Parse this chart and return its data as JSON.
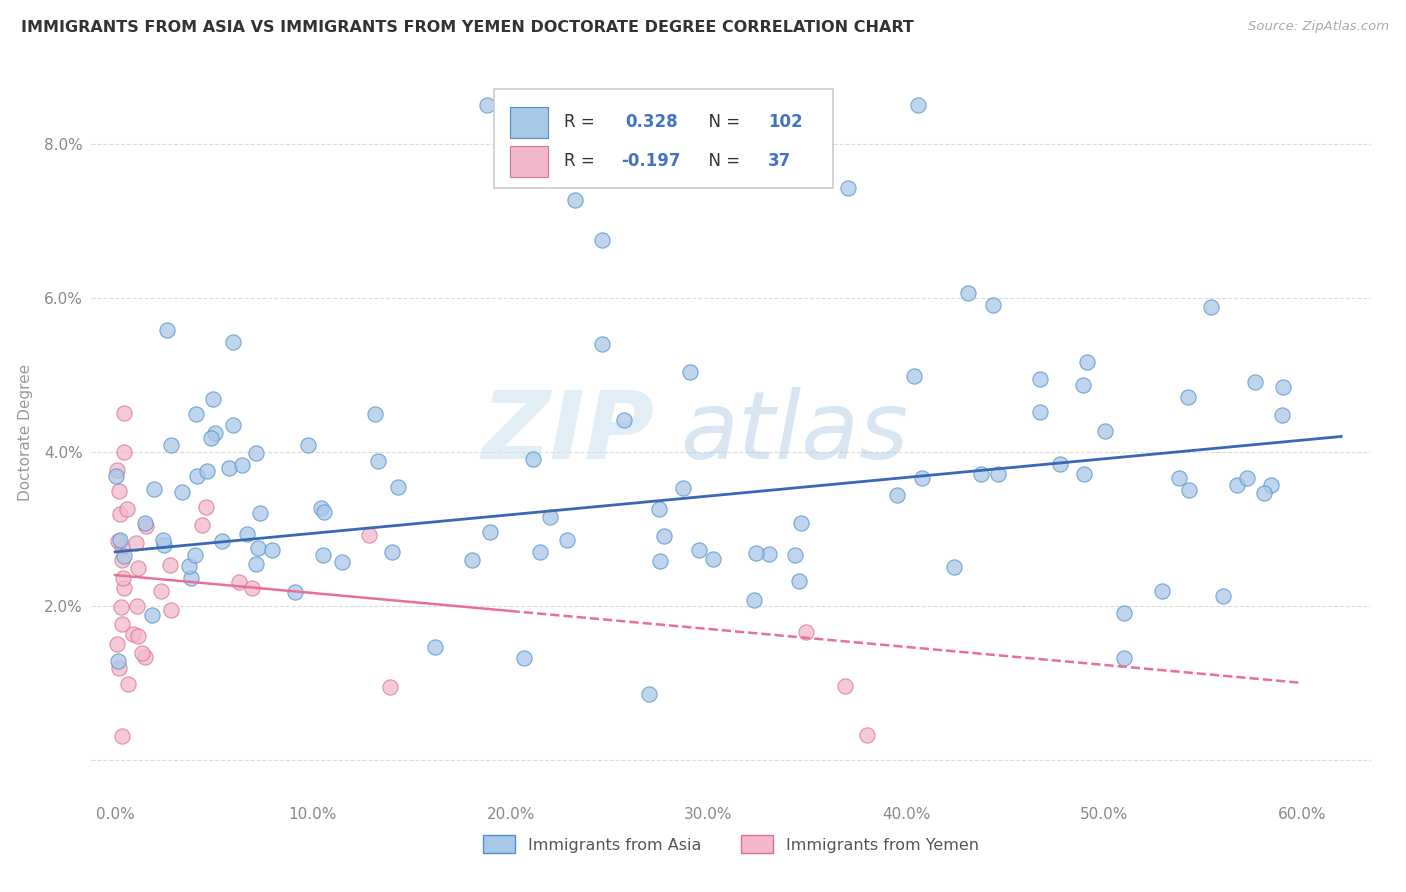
{
  "title": "IMMIGRANTS FROM ASIA VS IMMIGRANTS FROM YEMEN DOCTORATE DEGREE CORRELATION CHART",
  "source": "Source: ZipAtlas.com",
  "ylabel": "Doctorate Degree",
  "xlabel_asia": "Immigrants from Asia",
  "xlabel_yemen": "Immigrants from Yemen",
  "watermark_zip": "ZIP",
  "watermark_atlas": "atlas",
  "asia_color": "#a8c8e8",
  "yemen_color": "#f4b8cc",
  "asia_line_color": "#3a68b4",
  "yemen_line_color": "#e87090",
  "r_asia": "0.328",
  "n_asia": "102",
  "r_yemen": "-0.197",
  "n_yemen": "37",
  "stat_color": "#4472c4",
  "background_color": "#ffffff",
  "grid_color": "#cccccc",
  "title_color": "#333333",
  "label_color": "#888888"
}
